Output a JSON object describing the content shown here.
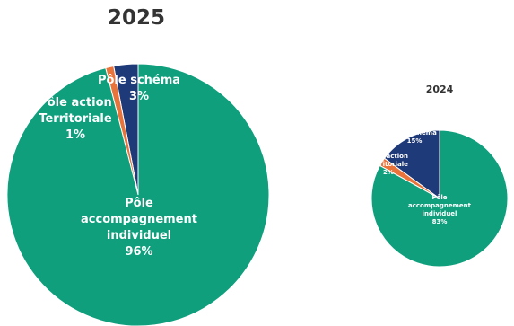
{
  "chart_data": [
    {
      "type": "pie",
      "title": "2025",
      "categories": [
        "Pôle schéma",
        "Pôle action Territoriale",
        "Pôle accompagnement individuel"
      ],
      "values": [
        3,
        1,
        96
      ],
      "labels": [
        "Pôle schéma\n3%",
        "Pôle action\nTerritoriale\n1%",
        "Pôle\naccompagnement\nindividuel\n96%"
      ],
      "colors": [
        "#1f3a78",
        "#e8743b",
        "#0f9f7d"
      ]
    },
    {
      "type": "pie",
      "title": "2024",
      "categories": [
        "Pôle schéma",
        "Pôle action Territoriale",
        "Pôle accompagnement individuel"
      ],
      "values": [
        15,
        2,
        83
      ],
      "labels": [
        "Pôle schéma\n15%",
        "Pôle action\nTerritoriale\n2%",
        "Pôle\naccompagnement\nindividuel\n83%"
      ],
      "colors": [
        "#1f3a78",
        "#e8743b",
        "#0f9f7d"
      ]
    }
  ]
}
